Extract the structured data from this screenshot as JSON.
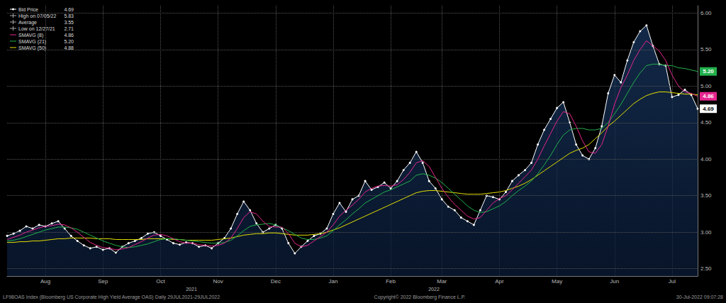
{
  "chart_data": {
    "type": "line",
    "categories": [
      null,
      null,
      null,
      null,
      null,
      null,
      "Aug",
      null,
      null,
      null,
      null,
      null,
      null,
      null,
      null,
      "Sep",
      null,
      null,
      null,
      null,
      null,
      null,
      null,
      null,
      "Oct",
      null,
      null,
      null,
      null,
      null,
      null,
      null,
      null,
      "Nov",
      null,
      null,
      null,
      null,
      null,
      null,
      null,
      null,
      "Dec",
      null,
      null,
      null,
      null,
      null,
      null,
      null,
      null,
      "Jan",
      null,
      null,
      null,
      null,
      null,
      null,
      null,
      null,
      "Feb",
      null,
      null,
      null,
      null,
      null,
      null,
      null,
      "Mar",
      null,
      null,
      null,
      null,
      null,
      null,
      null,
      null,
      "Apr",
      null,
      null,
      null,
      null,
      null,
      null,
      null,
      null,
      "May",
      null,
      null,
      null,
      null,
      null,
      null,
      null,
      null,
      "Jun",
      null,
      null,
      null,
      null,
      null,
      null,
      null,
      null,
      "Jul",
      null,
      null,
      null,
      null
    ],
    "series": [
      {
        "name": "Bid Price",
        "type": "area",
        "color": "#ffffff",
        "marker": "circle",
        "values": [
          2.95,
          2.98,
          3.02,
          3.08,
          3.05,
          3.1,
          3.08,
          3.12,
          3.15,
          3.05,
          2.95,
          2.88,
          2.82,
          2.78,
          2.8,
          2.76,
          2.78,
          2.72,
          2.8,
          2.85,
          2.88,
          2.92,
          2.98,
          3.0,
          2.95,
          2.9,
          2.85,
          2.83,
          2.86,
          2.85,
          2.8,
          2.82,
          2.78,
          2.85,
          2.92,
          3.05,
          3.25,
          3.42,
          3.3,
          3.12,
          3.0,
          3.05,
          3.1,
          3.05,
          2.85,
          2.71,
          2.8,
          2.88,
          2.95,
          2.98,
          3.05,
          3.25,
          3.4,
          3.28,
          3.45,
          3.5,
          3.7,
          3.58,
          3.62,
          3.68,
          3.6,
          3.7,
          3.85,
          3.95,
          4.1,
          3.95,
          3.7,
          3.6,
          3.45,
          3.35,
          3.3,
          3.2,
          3.15,
          3.1,
          3.3,
          3.5,
          3.48,
          3.45,
          3.55,
          3.7,
          3.78,
          3.85,
          3.95,
          4.2,
          4.4,
          4.55,
          4.7,
          4.78,
          4.5,
          4.2,
          4.05,
          4.0,
          4.15,
          4.45,
          4.9,
          5.15,
          5.05,
          5.35,
          5.6,
          5.75,
          5.83,
          5.55,
          5.3,
          5.28,
          4.85,
          4.88,
          4.95,
          4.88,
          4.69
        ]
      },
      {
        "name": "SMAVG (8)",
        "color": "#e6268f",
        "values": [
          2.9,
          2.93,
          2.96,
          3.0,
          3.03,
          3.06,
          3.08,
          3.09,
          3.11,
          3.1,
          3.06,
          3.0,
          2.93,
          2.86,
          2.82,
          2.79,
          2.78,
          2.76,
          2.77,
          2.79,
          2.83,
          2.87,
          2.92,
          2.96,
          2.97,
          2.95,
          2.91,
          2.87,
          2.85,
          2.85,
          2.83,
          2.82,
          2.81,
          2.82,
          2.85,
          2.92,
          3.05,
          3.2,
          3.28,
          3.25,
          3.15,
          3.08,
          3.07,
          3.07,
          2.98,
          2.85,
          2.8,
          2.82,
          2.88,
          2.94,
          3.0,
          3.1,
          3.22,
          3.3,
          3.37,
          3.45,
          3.55,
          3.6,
          3.63,
          3.64,
          3.63,
          3.65,
          3.72,
          3.82,
          3.95,
          3.98,
          3.9,
          3.75,
          3.6,
          3.48,
          3.38,
          3.3,
          3.22,
          3.18,
          3.2,
          3.3,
          3.4,
          3.46,
          3.5,
          3.58,
          3.67,
          3.76,
          3.85,
          4.0,
          4.18,
          4.35,
          4.52,
          4.65,
          4.62,
          4.45,
          4.25,
          4.1,
          4.08,
          4.2,
          4.45,
          4.75,
          4.98,
          5.15,
          5.35,
          5.5,
          5.62,
          5.55,
          5.48,
          5.35,
          5.15,
          5.0,
          4.92,
          4.9,
          4.86
        ]
      },
      {
        "name": "SMAVG (21)",
        "color": "#22b14c",
        "values": [
          2.88,
          2.89,
          2.91,
          2.94,
          2.97,
          3.0,
          3.03,
          3.05,
          3.07,
          3.07,
          3.06,
          3.04,
          3.0,
          2.96,
          2.92,
          2.88,
          2.85,
          2.82,
          2.8,
          2.79,
          2.8,
          2.82,
          2.84,
          2.87,
          2.9,
          2.91,
          2.91,
          2.9,
          2.89,
          2.88,
          2.87,
          2.86,
          2.85,
          2.85,
          2.86,
          2.89,
          2.95,
          3.02,
          3.08,
          3.1,
          3.11,
          3.12,
          3.1,
          3.06,
          3.02,
          2.97,
          2.92,
          2.9,
          2.9,
          2.92,
          2.95,
          3.02,
          3.1,
          3.17,
          3.25,
          3.32,
          3.4,
          3.45,
          3.5,
          3.55,
          3.58,
          3.62,
          3.66,
          3.7,
          3.78,
          3.8,
          3.78,
          3.74,
          3.68,
          3.6,
          3.52,
          3.44,
          3.36,
          3.3,
          3.27,
          3.28,
          3.32,
          3.36,
          3.42,
          3.5,
          3.57,
          3.63,
          3.7,
          3.8,
          3.92,
          4.05,
          4.2,
          4.33,
          4.4,
          4.42,
          4.42,
          4.4,
          4.4,
          4.42,
          4.5,
          4.62,
          4.75,
          4.9,
          5.05,
          5.18,
          5.28,
          5.3,
          5.3,
          5.28,
          5.28,
          5.25,
          5.24,
          5.22,
          5.2
        ]
      },
      {
        "name": "SMAVG (50)",
        "color": "#e5e000",
        "values": [
          2.86,
          2.86,
          2.87,
          2.87,
          2.88,
          2.88,
          2.89,
          2.9,
          2.91,
          2.91,
          2.92,
          2.92,
          2.92,
          2.92,
          2.91,
          2.91,
          2.91,
          2.9,
          2.9,
          2.9,
          2.9,
          2.9,
          2.91,
          2.91,
          2.91,
          2.91,
          2.9,
          2.9,
          2.89,
          2.89,
          2.89,
          2.89,
          2.89,
          2.9,
          2.91,
          2.92,
          2.94,
          2.96,
          2.97,
          2.98,
          2.98,
          2.99,
          2.99,
          2.98,
          2.97,
          2.96,
          2.96,
          2.96,
          2.97,
          2.98,
          3.0,
          3.03,
          3.06,
          3.1,
          3.14,
          3.18,
          3.22,
          3.26,
          3.3,
          3.34,
          3.38,
          3.42,
          3.46,
          3.5,
          3.54,
          3.56,
          3.57,
          3.57,
          3.56,
          3.55,
          3.54,
          3.53,
          3.52,
          3.52,
          3.52,
          3.53,
          3.54,
          3.55,
          3.57,
          3.6,
          3.63,
          3.67,
          3.72,
          3.78,
          3.84,
          3.9,
          3.96,
          4.02,
          4.08,
          4.12,
          4.15,
          4.2,
          4.28,
          4.36,
          4.45,
          4.52,
          4.6,
          4.68,
          4.76,
          4.82,
          4.87,
          4.9,
          4.92,
          4.92,
          4.91,
          4.9,
          4.89,
          4.89,
          4.88
        ]
      }
    ],
    "ylim": [
      2.4,
      6.1
    ],
    "yticks": [
      {
        "value": 2.5,
        "label": "2.50"
      },
      {
        "value": 3,
        "label": "3.00"
      },
      {
        "value": 3.5,
        "label": "3.50"
      },
      {
        "value": 4,
        "label": "4.00"
      },
      {
        "value": 4.5,
        "label": "4.50"
      },
      {
        "value": 5,
        "label": "5.00"
      },
      {
        "value": 5.5,
        "label": "5.50"
      },
      {
        "value": 6,
        "label": "6.00"
      }
    ],
    "grid": true,
    "legend": "top-left",
    "legend_box": [
      {
        "name": "Bid Price",
        "value": {
          "value": 4.69,
          "label": "4.69"
        }
      },
      {
        "name": "High on 07/05/22",
        "value": {
          "value": 5.83,
          "label": "5.83"
        }
      },
      {
        "name": "Average",
        "value": {
          "value": 3.55,
          "label": "3.55"
        }
      },
      {
        "name": "Low on 12/27/21",
        "value": {
          "value": 2.71,
          "label": "2.71"
        }
      },
      {
        "name": "SMAVG (8)",
        "value": {
          "value": 4.86,
          "label": "4.86"
        }
      },
      {
        "name": "SMAVG (21)",
        "value": {
          "value": 5.2,
          "label": "5.20"
        }
      },
      {
        "name": "SMAVG (50)",
        "value": {
          "value": 4.88,
          "label": "4.88"
        }
      }
    ],
    "year_labels": [
      "2021",
      "2022"
    ],
    "footer": {
      "left": "LF98OAS Index (Bloomberg US Corporate High Yield Average OAS) Daily 29JUL2021-29JUL2022",
      "center": "Copyright© 2022 Bloomberg Finance L.P.",
      "right": "30-Jul-2022 09:07:28"
    }
  }
}
